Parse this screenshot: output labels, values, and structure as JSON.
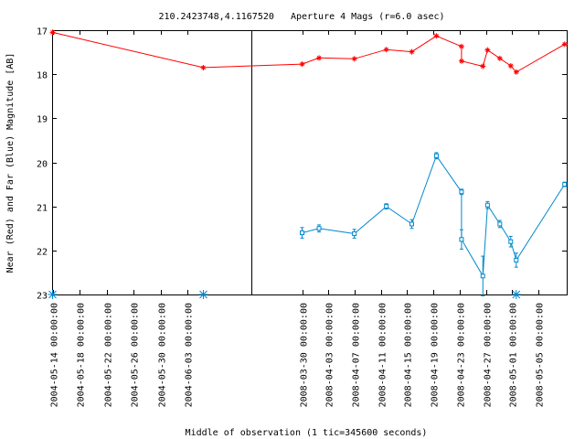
{
  "chart_data": {
    "type": "line",
    "title": "210.2423748,4.1167520   Aperture 4 Mags (r=6.0 asec)",
    "xlabel": "Middle of observation (1 tic=345600 seconds)",
    "ylabel": "Near (Red) and Far (Blue) Magnitude [AB]",
    "ylim": [
      23,
      17
    ],
    "y_ticks": [
      "17",
      "18",
      "19",
      "20",
      "21",
      "22",
      "23"
    ],
    "x_tick_labels": [
      "2004-05-14 00:00:00",
      "2004-05-18 00:00:00",
      "2004-05-22 00:00:00",
      "2004-05-26 00:00:00",
      "2004-05-30 00:00:00",
      "2004-06-03 00:00:00",
      "2008-03-30 00:00:00",
      "2008-04-03 00:00:00",
      "2008-04-07 00:00:00",
      "2008-04-11 00:00:00",
      "2008-04-15 00:00:00",
      "2008-04-19 00:00:00",
      "2008-04-23 00:00:00",
      "2008-04-27 00:00:00",
      "2008-05-01 00:00:00",
      "2008-05-05 00:00:00"
    ],
    "series": [
      {
        "color": "#ff0000",
        "marker": "star",
        "points": [
          {
            "t": "2004-05-14 00:00:00",
            "y": 17.05
          },
          {
            "t": "2004-06-05 09:00:00",
            "y": 17.85
          },
          {
            "t": "2008-03-30 00:00:00",
            "y": 17.77
          },
          {
            "t": "2008-04-01 14:00:00",
            "y": 17.63
          },
          {
            "t": "2008-04-06 23:00:00",
            "y": 17.65
          },
          {
            "t": "2008-04-11 20:00:00",
            "y": 17.44
          },
          {
            "t": "2008-04-15 17:00:00",
            "y": 17.49
          },
          {
            "t": "2008-04-19 11:00:00",
            "y": 17.13
          },
          {
            "t": "2008-04-23 07:00:00",
            "y": 17.37
          },
          {
            "t": "2008-04-23 07:00:00",
            "y": 17.7
          },
          {
            "t": "2008-04-26 13:00:00",
            "y": 17.82
          },
          {
            "t": "2008-04-27 06:00:00",
            "y": 17.45
          },
          {
            "t": "2008-04-29 03:00:00",
            "y": 17.64
          },
          {
            "t": "2008-04-30 19:00:00",
            "y": 17.81
          },
          {
            "t": "2008-05-01 15:00:00",
            "y": 17.95
          },
          {
            "t": "2008-05-09 00:00:00",
            "y": 17.32
          }
        ]
      },
      {
        "color": "#0088cc",
        "marker": "square",
        "points": [
          {
            "t": "2008-03-30 00:00:00",
            "y": 21.6,
            "err": 0.12
          },
          {
            "t": "2008-04-01 14:00:00",
            "y": 21.5,
            "err": 0.08
          },
          {
            "t": "2008-04-06 23:00:00",
            "y": 21.62,
            "err": 0.1
          },
          {
            "t": "2008-04-11 20:00:00",
            "y": 21.0,
            "err": 0.06
          },
          {
            "t": "2008-04-15 17:00:00",
            "y": 21.4,
            "err": 0.1
          },
          {
            "t": "2008-04-19 11:00:00",
            "y": 19.85,
            "err": 0.07
          },
          {
            "t": "2008-04-23 07:00:00",
            "y": 20.67,
            "err": 0.06
          },
          {
            "t": "2008-04-23 07:00:00",
            "y": 21.75,
            "err": 0.22
          },
          {
            "t": "2008-04-26 13:00:00",
            "y": 22.58,
            "err": 0.45
          },
          {
            "t": "2008-04-27 06:00:00",
            "y": 20.97,
            "err": 0.08
          },
          {
            "t": "2008-04-29 03:00:00",
            "y": 21.4,
            "err": 0.08
          },
          {
            "t": "2008-04-30 19:00:00",
            "y": 21.8,
            "err": 0.12
          },
          {
            "t": "2008-05-01 15:00:00",
            "y": 22.22,
            "err": 0.16
          },
          {
            "t": "2008-05-09 00:00:00",
            "y": 20.5,
            "err": 0.05
          }
        ]
      }
    ],
    "baseline_markers": [
      {
        "t": "2004-05-14 00:00:00",
        "y": 23
      },
      {
        "t": "2004-06-05 09:00:00",
        "y": 23
      },
      {
        "t": "2008-05-01 15:00:00",
        "y": 23
      }
    ],
    "baseline_marker_color": "#0088cc",
    "segment_divider": "between 2004-06-05 and 2008-03-30"
  }
}
